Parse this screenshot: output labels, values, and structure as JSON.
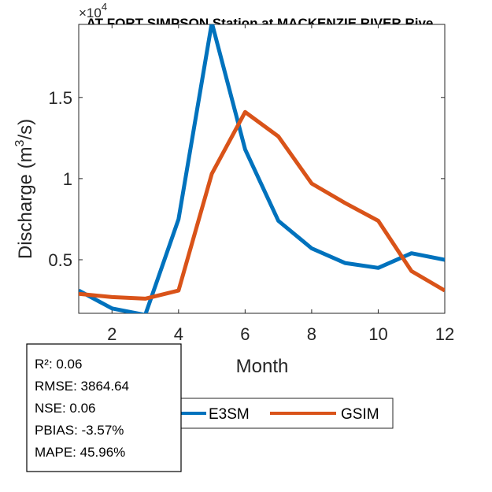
{
  "chart_data": {
    "type": "line",
    "title": "AT FORT SIMPSON  Station at  MACKENZIE RIVER  Rive",
    "xlabel": "Month",
    "ylabel_main": "Discharge (m",
    "ylabel_sup": "3",
    "ylabel_end": "/s)",
    "y_exponent_base": "×10",
    "y_exponent_power": "4",
    "xlim": [
      1,
      12
    ],
    "ylim": [
      0.17,
      1.95
    ],
    "x": [
      1,
      2,
      3,
      4,
      5,
      6,
      7,
      8,
      9,
      10,
      11,
      12
    ],
    "xticks": [
      2,
      4,
      6,
      8,
      10,
      12
    ],
    "xtick_labels": [
      "2",
      "4",
      "6",
      "8",
      "10",
      "12"
    ],
    "yticks": [
      0.5,
      1,
      1.5
    ],
    "ytick_labels": [
      "0.5",
      "1",
      "1.5"
    ],
    "series": [
      {
        "name": "E3SM",
        "color": "#0072BD",
        "values": [
          0.31,
          0.2,
          0.16,
          0.75,
          1.96,
          1.18,
          0.74,
          0.57,
          0.48,
          0.45,
          0.54,
          0.5
        ]
      },
      {
        "name": "GSIM",
        "color": "#D95319",
        "values": [
          0.29,
          0.27,
          0.26,
          0.31,
          1.03,
          1.41,
          1.26,
          0.97,
          0.85,
          0.74,
          0.43,
          0.31
        ]
      }
    ],
    "legend": {
      "location": "bottom",
      "items": [
        "E3SM",
        "GSIM"
      ]
    },
    "stats": [
      "R²: 0.06",
      "RMSE: 3864.64",
      "NSE: 0.06",
      "PBIAS: -3.57%",
      "MAPE: 45.96%"
    ]
  }
}
